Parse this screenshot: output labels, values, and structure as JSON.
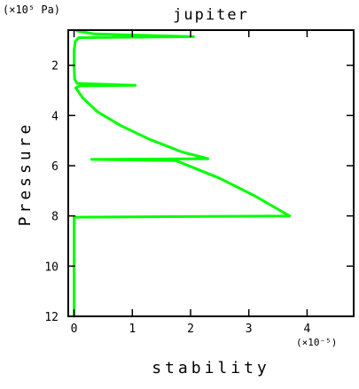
{
  "chart_data": {
    "type": "line",
    "title": "jupiter",
    "xlabel": "stability",
    "ylabel": "Pressure",
    "x_scale_note": "(×10⁻⁵)",
    "y_unit_note": "(×10⁵ Pa)",
    "xlim": [
      -0.1,
      4.8
    ],
    "ylim": [
      12,
      0.6
    ],
    "y_inverted": true,
    "x_ticks": [
      0,
      1,
      2,
      3,
      4
    ],
    "x_tick_labels": [
      "0",
      "1",
      "2",
      "3",
      "4"
    ],
    "y_ticks": [
      2,
      4,
      6,
      8,
      10,
      12
    ],
    "y_tick_labels": [
      "2",
      "4",
      "6",
      "8",
      "10",
      "12"
    ],
    "grid": false,
    "series": [
      {
        "color": "#00ff00",
        "points": [
          [
            0.05,
            0.63
          ],
          [
            0.35,
            0.75
          ],
          [
            2.05,
            0.86
          ],
          [
            0.08,
            0.9
          ],
          [
            0.02,
            1.05
          ],
          [
            0.0,
            1.4
          ],
          [
            0.0,
            2.0
          ],
          [
            0.01,
            2.55
          ],
          [
            0.05,
            2.72
          ],
          [
            1.05,
            2.8
          ],
          [
            0.1,
            2.82
          ],
          [
            0.03,
            2.9
          ],
          [
            0.15,
            3.3
          ],
          [
            0.4,
            3.85
          ],
          [
            0.8,
            4.4
          ],
          [
            1.3,
            4.95
          ],
          [
            1.85,
            5.45
          ],
          [
            2.3,
            5.72
          ],
          [
            0.3,
            5.75
          ],
          [
            1.75,
            5.8
          ],
          [
            2.5,
            6.5
          ],
          [
            3.1,
            7.2
          ],
          [
            3.7,
            8.0
          ],
          [
            0.0,
            8.05
          ],
          [
            0.0,
            9.0
          ],
          [
            0.0,
            10.0
          ],
          [
            0.0,
            11.0
          ],
          [
            0.0,
            12.0
          ]
        ]
      }
    ]
  }
}
